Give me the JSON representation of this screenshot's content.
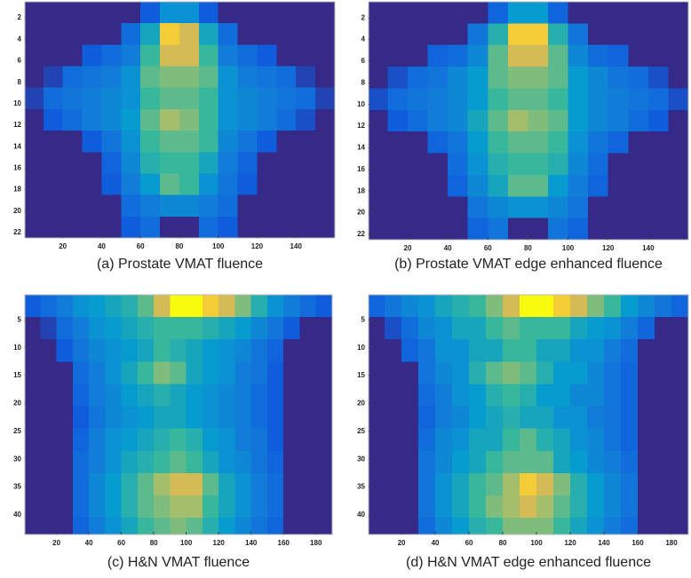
{
  "chart_data": [
    {
      "type": "heatmap",
      "title": "(a) Prostate VMAT fluence",
      "colormap": "parula",
      "y_reversed": true,
      "xlim": [
        0.5,
        160
      ],
      "ylim": [
        0.5,
        22.5
      ],
      "xticks": [
        20,
        40,
        60,
        80,
        100,
        120,
        140
      ],
      "yticks": [
        2,
        4,
        6,
        8,
        10,
        12,
        14,
        16,
        18,
        20,
        22
      ],
      "x_edges": [
        0.5,
        10,
        20,
        30,
        40,
        50,
        60,
        70,
        80,
        90,
        100,
        110,
        120,
        130,
        140,
        150,
        160
      ],
      "y_edges": [
        0.5,
        2.5,
        4.5,
        6.5,
        8.5,
        10.5,
        12.5,
        14.5,
        16.5,
        18.5,
        20.5,
        22.5
      ],
      "z": [
        [
          0,
          0,
          0,
          0,
          0,
          0,
          0.2,
          0.5,
          0.5,
          0.2,
          0,
          0,
          0,
          0,
          0,
          0
        ],
        [
          0,
          0,
          0,
          0,
          0,
          0.3,
          0.6,
          0.95,
          0.9,
          0.6,
          0.3,
          0,
          0,
          0,
          0,
          0
        ],
        [
          0,
          0,
          0,
          0.2,
          0.3,
          0.4,
          0.7,
          0.9,
          0.9,
          0.7,
          0.4,
          0.3,
          0.2,
          0,
          0,
          0
        ],
        [
          0,
          0.1,
          0.3,
          0.35,
          0.4,
          0.5,
          0.75,
          0.8,
          0.8,
          0.75,
          0.5,
          0.4,
          0.35,
          0.3,
          0.1,
          0
        ],
        [
          0.1,
          0.3,
          0.35,
          0.4,
          0.45,
          0.5,
          0.7,
          0.75,
          0.75,
          0.7,
          0.5,
          0.45,
          0.4,
          0.35,
          0.3,
          0.1
        ],
        [
          0,
          0.2,
          0.3,
          0.4,
          0.45,
          0.55,
          0.75,
          0.85,
          0.8,
          0.7,
          0.5,
          0.45,
          0.4,
          0.3,
          0.15,
          0
        ],
        [
          0,
          0,
          0,
          0.2,
          0.35,
          0.5,
          0.7,
          0.75,
          0.75,
          0.7,
          0.45,
          0.35,
          0.2,
          0,
          0,
          0
        ],
        [
          0,
          0,
          0,
          0,
          0.25,
          0.45,
          0.65,
          0.7,
          0.7,
          0.6,
          0.4,
          0.25,
          0,
          0,
          0,
          0
        ],
        [
          0,
          0,
          0,
          0,
          0.2,
          0.4,
          0.55,
          0.75,
          0.7,
          0.5,
          0.35,
          0.2,
          0,
          0,
          0,
          0
        ],
        [
          0,
          0,
          0,
          0,
          0,
          0.3,
          0.4,
          0.45,
          0.45,
          0.4,
          0.3,
          0,
          0,
          0,
          0,
          0
        ],
        [
          0,
          0,
          0,
          0,
          0,
          0.2,
          0.3,
          0,
          0,
          0.3,
          0.2,
          0,
          0,
          0,
          0,
          0
        ]
      ]
    },
    {
      "type": "heatmap",
      "title": "(b) Prostate VMAT edge enhanced fluence",
      "colormap": "parula",
      "y_reversed": true,
      "xlim": [
        0.5,
        160
      ],
      "ylim": [
        0.5,
        22.5
      ],
      "xticks": [
        20,
        40,
        60,
        80,
        100,
        120,
        140
      ],
      "yticks": [
        2,
        4,
        6,
        8,
        10,
        12,
        14,
        16,
        18,
        20,
        22
      ],
      "x_edges": [
        0.5,
        10,
        20,
        30,
        40,
        50,
        60,
        70,
        80,
        90,
        100,
        110,
        120,
        130,
        140,
        150,
        160
      ],
      "y_edges": [
        0.5,
        2.5,
        4.5,
        6.5,
        8.5,
        10.5,
        12.5,
        14.5,
        16.5,
        18.5,
        20.5,
        22.5
      ],
      "z": [
        [
          0,
          0,
          0,
          0,
          0,
          0,
          0.25,
          0.55,
          0.55,
          0.25,
          0,
          0,
          0,
          0,
          0,
          0
        ],
        [
          0,
          0,
          0,
          0,
          0,
          0.35,
          0.65,
          0.95,
          0.95,
          0.65,
          0.35,
          0,
          0,
          0,
          0,
          0
        ],
        [
          0,
          0,
          0,
          0.25,
          0.3,
          0.45,
          0.75,
          0.9,
          0.9,
          0.75,
          0.45,
          0.3,
          0.25,
          0,
          0,
          0
        ],
        [
          0,
          0.15,
          0.3,
          0.35,
          0.45,
          0.55,
          0.75,
          0.8,
          0.8,
          0.75,
          0.55,
          0.45,
          0.35,
          0.3,
          0.15,
          0
        ],
        [
          0.15,
          0.3,
          0.35,
          0.4,
          0.45,
          0.55,
          0.7,
          0.75,
          0.75,
          0.7,
          0.55,
          0.45,
          0.4,
          0.35,
          0.3,
          0.15
        ],
        [
          0,
          0.2,
          0.3,
          0.4,
          0.45,
          0.6,
          0.75,
          0.85,
          0.8,
          0.75,
          0.55,
          0.45,
          0.4,
          0.3,
          0.2,
          0
        ],
        [
          0,
          0,
          0,
          0.25,
          0.35,
          0.55,
          0.7,
          0.75,
          0.75,
          0.7,
          0.5,
          0.35,
          0.25,
          0,
          0,
          0
        ],
        [
          0,
          0,
          0,
          0,
          0.3,
          0.5,
          0.65,
          0.7,
          0.7,
          0.65,
          0.45,
          0.3,
          0,
          0,
          0,
          0
        ],
        [
          0,
          0,
          0,
          0,
          0.25,
          0.45,
          0.6,
          0.75,
          0.75,
          0.55,
          0.4,
          0.25,
          0,
          0,
          0,
          0
        ],
        [
          0,
          0,
          0,
          0,
          0,
          0.35,
          0.45,
          0.5,
          0.5,
          0.45,
          0.35,
          0,
          0,
          0,
          0,
          0
        ],
        [
          0,
          0,
          0,
          0,
          0,
          0.25,
          0.35,
          0,
          0,
          0.35,
          0.25,
          0,
          0,
          0,
          0,
          0
        ]
      ]
    },
    {
      "type": "heatmap",
      "title": "(c) H&N VMAT fluence",
      "colormap": "parula",
      "y_reversed": true,
      "xlim": [
        0.5,
        190
      ],
      "ylim": [
        0.5,
        43.5
      ],
      "xticks": [
        20,
        40,
        60,
        80,
        100,
        120,
        140,
        160,
        180
      ],
      "yticks": [
        5,
        10,
        15,
        20,
        25,
        30,
        35,
        40
      ],
      "x_edges": [
        0.5,
        10,
        20,
        30,
        40,
        50,
        60,
        70,
        80,
        90,
        100,
        110,
        120,
        130,
        140,
        150,
        160,
        170,
        180,
        190
      ],
      "y_edges": [
        0.5,
        4.5,
        8.5,
        12.5,
        16.5,
        20.5,
        24.5,
        28.5,
        32.5,
        36.5,
        40.5,
        43.5
      ],
      "z": [
        [
          0.2,
          0.3,
          0.4,
          0.5,
          0.55,
          0.6,
          0.65,
          0.75,
          0.9,
          1,
          1,
          0.95,
          0.9,
          0.8,
          0.65,
          0.5,
          0.4,
          0.3,
          0.2
        ],
        [
          0,
          0.1,
          0.3,
          0.4,
          0.5,
          0.55,
          0.6,
          0.65,
          0.7,
          0.7,
          0.7,
          0.65,
          0.6,
          0.55,
          0.45,
          0.35,
          0.2,
          0,
          0
        ],
        [
          0,
          0,
          0.2,
          0.35,
          0.45,
          0.5,
          0.55,
          0.6,
          0.7,
          0.65,
          0.6,
          0.55,
          0.5,
          0.45,
          0.35,
          0.25,
          0,
          0,
          0
        ],
        [
          0,
          0,
          0,
          0.3,
          0.4,
          0.5,
          0.6,
          0.7,
          0.8,
          0.75,
          0.6,
          0.55,
          0.5,
          0.4,
          0.35,
          0.2,
          0,
          0,
          0
        ],
        [
          0,
          0,
          0,
          0.25,
          0.4,
          0.45,
          0.55,
          0.6,
          0.65,
          0.6,
          0.55,
          0.5,
          0.45,
          0.4,
          0.3,
          0.2,
          0,
          0,
          0
        ],
        [
          0,
          0,
          0,
          0.2,
          0.35,
          0.45,
          0.5,
          0.55,
          0.6,
          0.6,
          0.55,
          0.5,
          0.45,
          0.4,
          0.3,
          0.2,
          0,
          0,
          0
        ],
        [
          0,
          0,
          0,
          0.25,
          0.4,
          0.5,
          0.55,
          0.6,
          0.65,
          0.7,
          0.65,
          0.55,
          0.5,
          0.4,
          0.35,
          0.2,
          0,
          0,
          0
        ],
        [
          0,
          0,
          0,
          0.3,
          0.4,
          0.5,
          0.6,
          0.65,
          0.7,
          0.75,
          0.7,
          0.6,
          0.5,
          0.45,
          0.35,
          0.25,
          0,
          0,
          0
        ],
        [
          0,
          0,
          0,
          0.3,
          0.45,
          0.55,
          0.65,
          0.75,
          0.85,
          0.9,
          0.9,
          0.75,
          0.6,
          0.5,
          0.4,
          0.3,
          0,
          0,
          0
        ],
        [
          0,
          0,
          0,
          0.3,
          0.45,
          0.55,
          0.65,
          0.75,
          0.8,
          0.85,
          0.85,
          0.7,
          0.6,
          0.5,
          0.4,
          0.3,
          0,
          0,
          0
        ],
        [
          0,
          0,
          0,
          0.25,
          0.4,
          0.5,
          0.6,
          0.7,
          0.75,
          0.8,
          0.75,
          0.65,
          0.55,
          0.45,
          0.35,
          0.25,
          0,
          0,
          0
        ]
      ]
    },
    {
      "type": "heatmap",
      "title": "(d) H&N VMAT edge enhanced fluence",
      "colormap": "parula",
      "y_reversed": true,
      "xlim": [
        0.5,
        190
      ],
      "ylim": [
        0.5,
        43.5
      ],
      "xticks": [
        20,
        40,
        60,
        80,
        100,
        120,
        140,
        160,
        180
      ],
      "yticks": [
        5,
        10,
        15,
        20,
        25,
        30,
        35,
        40
      ],
      "x_edges": [
        0.5,
        10,
        20,
        30,
        40,
        50,
        60,
        70,
        80,
        90,
        100,
        110,
        120,
        130,
        140,
        150,
        160,
        170,
        180,
        190
      ],
      "y_edges": [
        0.5,
        4.5,
        8.5,
        12.5,
        16.5,
        20.5,
        24.5,
        28.5,
        32.5,
        36.5,
        40.5,
        43.5
      ],
      "z": [
        [
          0.25,
          0.35,
          0.45,
          0.5,
          0.6,
          0.65,
          0.7,
          0.8,
          0.9,
          1,
          1,
          0.95,
          0.9,
          0.8,
          0.7,
          0.55,
          0.45,
          0.35,
          0.25
        ],
        [
          0,
          0.15,
          0.3,
          0.45,
          0.5,
          0.6,
          0.6,
          0.7,
          0.75,
          0.7,
          0.7,
          0.7,
          0.6,
          0.55,
          0.5,
          0.4,
          0.25,
          0,
          0
        ],
        [
          0,
          0,
          0.25,
          0.35,
          0.5,
          0.5,
          0.6,
          0.6,
          0.7,
          0.7,
          0.6,
          0.6,
          0.5,
          0.5,
          0.4,
          0.3,
          0,
          0,
          0
        ],
        [
          0,
          0,
          0,
          0.35,
          0.45,
          0.5,
          0.65,
          0.75,
          0.8,
          0.75,
          0.65,
          0.55,
          0.55,
          0.45,
          0.35,
          0.25,
          0,
          0,
          0
        ],
        [
          0,
          0,
          0,
          0.3,
          0.4,
          0.5,
          0.55,
          0.65,
          0.7,
          0.65,
          0.55,
          0.55,
          0.45,
          0.45,
          0.35,
          0.25,
          0,
          0,
          0
        ],
        [
          0,
          0,
          0,
          0.25,
          0.4,
          0.45,
          0.55,
          0.6,
          0.65,
          0.6,
          0.6,
          0.5,
          0.5,
          0.4,
          0.35,
          0.25,
          0,
          0,
          0
        ],
        [
          0,
          0,
          0,
          0.3,
          0.45,
          0.5,
          0.6,
          0.6,
          0.7,
          0.75,
          0.65,
          0.6,
          0.5,
          0.45,
          0.35,
          0.25,
          0,
          0,
          0
        ],
        [
          0,
          0,
          0,
          0.35,
          0.45,
          0.55,
          0.6,
          0.7,
          0.75,
          0.75,
          0.75,
          0.6,
          0.55,
          0.45,
          0.4,
          0.3,
          0,
          0,
          0
        ],
        [
          0,
          0,
          0,
          0.35,
          0.5,
          0.6,
          0.7,
          0.75,
          0.85,
          0.95,
          0.9,
          0.8,
          0.65,
          0.55,
          0.45,
          0.35,
          0,
          0,
          0
        ],
        [
          0,
          0,
          0,
          0.35,
          0.5,
          0.6,
          0.7,
          0.8,
          0.85,
          0.9,
          0.85,
          0.75,
          0.65,
          0.55,
          0.45,
          0.35,
          0,
          0,
          0
        ],
        [
          0,
          0,
          0,
          0.3,
          0.45,
          0.55,
          0.65,
          0.7,
          0.8,
          0.8,
          0.8,
          0.7,
          0.6,
          0.5,
          0.4,
          0.3,
          0,
          0,
          0
        ]
      ]
    }
  ]
}
